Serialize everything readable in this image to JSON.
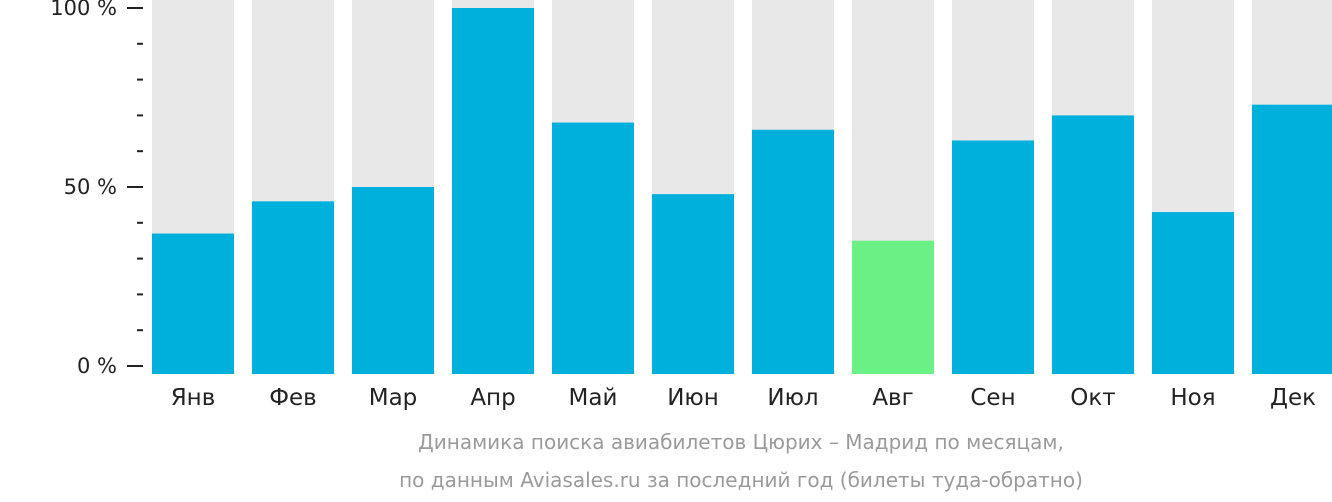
{
  "chart_data": {
    "type": "bar",
    "categories": [
      "Янв",
      "Фев",
      "Мар",
      "Апр",
      "Май",
      "Июн",
      "Июл",
      "Авг",
      "Сен",
      "Окт",
      "Ноя",
      "Дек"
    ],
    "values": [
      37,
      46,
      50,
      100,
      68,
      48,
      66,
      35,
      63,
      70,
      43,
      73
    ],
    "highlight_index": 7,
    "ylim": [
      0,
      100
    ],
    "yticks": [
      {
        "value": 0,
        "label": "0 %"
      },
      {
        "value": 50,
        "label": "50 %"
      },
      {
        "value": 100,
        "label": "100 %"
      }
    ],
    "minor_tick_step": 10,
    "colors": {
      "bar": "#00b0dc",
      "highlight": "#6bf085",
      "track": "#e8e8e8",
      "axis": "#222222",
      "caption": "#9a9a9a"
    },
    "grid": false,
    "legend": "none"
  },
  "caption": {
    "line1": "Динамика поиска авиабилетов Цюрих – Мадрид по месяцам,",
    "line2": "по данным Aviasales.ru за последний год (билеты туда-обратно)"
  }
}
